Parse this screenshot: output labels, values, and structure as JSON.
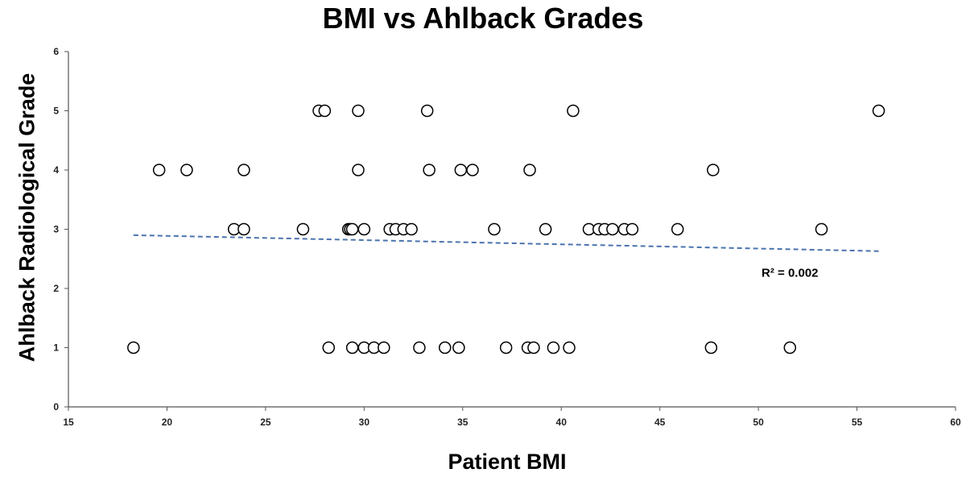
{
  "chart_data": {
    "type": "scatter",
    "title": "BMI vs Ahlback Grades",
    "xlabel": "Patient BMI",
    "ylabel": "Ahlback Radiological Grade",
    "xlim": [
      15,
      60
    ],
    "ylim": [
      0,
      6
    ],
    "xticks": [
      15,
      20,
      25,
      30,
      35,
      40,
      45,
      50,
      55,
      60
    ],
    "yticks": [
      0,
      1,
      2,
      3,
      4,
      5,
      6
    ],
    "grid": false,
    "legend": "none",
    "marker": "open-circle",
    "marker_color": "#000000",
    "points": [
      {
        "x": 27.7,
        "y": 5
      },
      {
        "x": 28.0,
        "y": 5
      },
      {
        "x": 29.7,
        "y": 5
      },
      {
        "x": 33.2,
        "y": 5
      },
      {
        "x": 40.6,
        "y": 5
      },
      {
        "x": 56.1,
        "y": 5
      },
      {
        "x": 19.6,
        "y": 4
      },
      {
        "x": 21.0,
        "y": 4
      },
      {
        "x": 23.9,
        "y": 4
      },
      {
        "x": 29.7,
        "y": 4
      },
      {
        "x": 33.3,
        "y": 4
      },
      {
        "x": 34.9,
        "y": 4
      },
      {
        "x": 35.5,
        "y": 4
      },
      {
        "x": 38.4,
        "y": 4
      },
      {
        "x": 47.7,
        "y": 4
      },
      {
        "x": 23.4,
        "y": 3
      },
      {
        "x": 23.9,
        "y": 3
      },
      {
        "x": 26.9,
        "y": 3
      },
      {
        "x": 29.2,
        "y": 3
      },
      {
        "x": 29.3,
        "y": 3
      },
      {
        "x": 29.4,
        "y": 3
      },
      {
        "x": 30.0,
        "y": 3
      },
      {
        "x": 31.3,
        "y": 3
      },
      {
        "x": 31.6,
        "y": 3
      },
      {
        "x": 32.0,
        "y": 3
      },
      {
        "x": 32.4,
        "y": 3
      },
      {
        "x": 36.6,
        "y": 3
      },
      {
        "x": 39.2,
        "y": 3
      },
      {
        "x": 41.4,
        "y": 3
      },
      {
        "x": 41.9,
        "y": 3
      },
      {
        "x": 42.2,
        "y": 3
      },
      {
        "x": 42.6,
        "y": 3
      },
      {
        "x": 43.2,
        "y": 3
      },
      {
        "x": 43.6,
        "y": 3
      },
      {
        "x": 45.9,
        "y": 3
      },
      {
        "x": 53.2,
        "y": 3
      },
      {
        "x": 18.3,
        "y": 1
      },
      {
        "x": 28.2,
        "y": 1
      },
      {
        "x": 29.4,
        "y": 1
      },
      {
        "x": 30.0,
        "y": 1
      },
      {
        "x": 30.5,
        "y": 1
      },
      {
        "x": 31.0,
        "y": 1
      },
      {
        "x": 32.8,
        "y": 1
      },
      {
        "x": 34.1,
        "y": 1
      },
      {
        "x": 34.8,
        "y": 1
      },
      {
        "x": 37.2,
        "y": 1
      },
      {
        "x": 38.3,
        "y": 1
      },
      {
        "x": 38.6,
        "y": 1
      },
      {
        "x": 39.6,
        "y": 1
      },
      {
        "x": 40.4,
        "y": 1
      },
      {
        "x": 47.6,
        "y": 1
      },
      {
        "x": 51.6,
        "y": 1
      }
    ],
    "trendline": {
      "x": [
        18.3,
        56.1
      ],
      "y": [
        2.9,
        2.63
      ],
      "style": "dashed",
      "color": "#4a74ad"
    },
    "annotations": [
      {
        "text": "R² = 0.002",
        "x": 51.6,
        "y": 2.2
      }
    ]
  }
}
